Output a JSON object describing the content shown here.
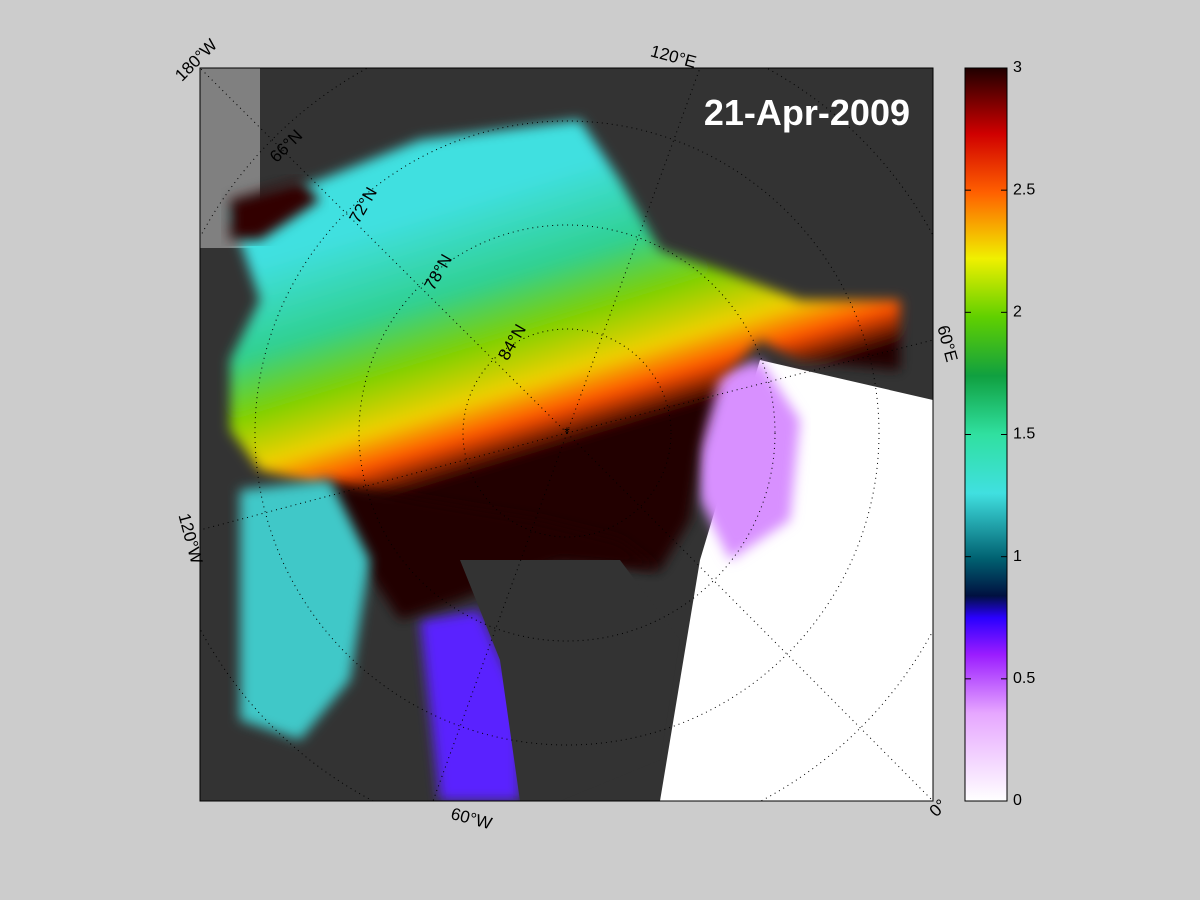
{
  "title": "21-Apr-2009",
  "longitude_labels": [
    "180°W",
    "120°E",
    "60°E",
    "0°",
    "60°W",
    "120°W"
  ],
  "latitude_labels": [
    "66°N",
    "72°N",
    "78°N",
    "84°N"
  ],
  "colorbar": {
    "lim": [
      0,
      3
    ],
    "ticks": [
      0,
      0.5,
      1,
      1.5,
      2,
      2.5,
      3
    ]
  }
}
